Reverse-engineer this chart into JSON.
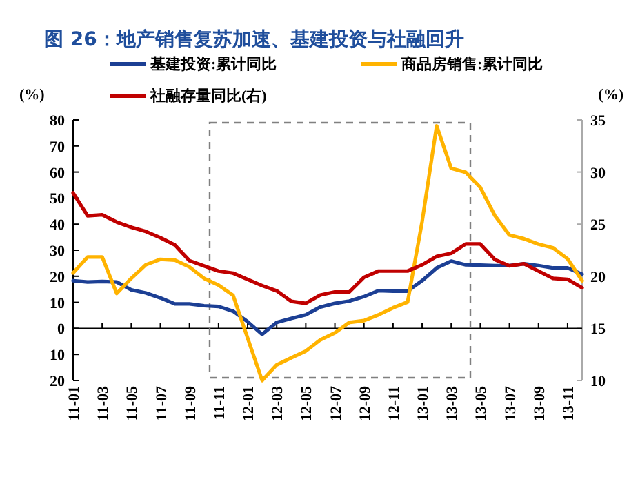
{
  "chart_data": {
    "type": "line",
    "title": "图 26：地产销售复苏加速、基建投资与社融回升",
    "categories": [
      "11-01",
      null,
      "11-03",
      null,
      "11-05",
      null,
      "11-07",
      null,
      "11-09",
      null,
      "11-11",
      null,
      "12-01",
      null,
      "12-03",
      null,
      "12-05",
      null,
      "12-07",
      null,
      "12-09",
      null,
      "12-11",
      null,
      "13-01",
      null,
      "13-03",
      null,
      "13-05",
      null,
      "13-07",
      null,
      "13-09",
      null,
      "13-11",
      null
    ],
    "series": [
      {
        "name": "基建投资:累计同比",
        "color": "#1c3f94",
        "values": [
          18.3,
          17.8,
          18,
          17.8,
          14.8,
          13.6,
          11.7,
          9.4,
          9.4,
          8.7,
          8.4,
          6.6,
          2.6,
          -2.3,
          2.3,
          3.8,
          5.2,
          8.2,
          9.6,
          10.5,
          12.2,
          14.5,
          14.3,
          14.3,
          18.3,
          23.2,
          25.8,
          24.4,
          24.3,
          24.1,
          24.1,
          24.8,
          24.1,
          23.2,
          23.2,
          20.8
        ]
      },
      {
        "name": "商品房销售:累计同比",
        "color": "#ffb300",
        "values": [
          21.3,
          27.4,
          27.4,
          13.4,
          19.2,
          24.4,
          26.5,
          26.2,
          23.6,
          19.2,
          16.6,
          12.7,
          -3.7,
          -20,
          -14,
          -11.3,
          -8.7,
          -4.4,
          -1.7,
          2.3,
          3,
          5.2,
          7.9,
          10.1,
          41,
          77.7,
          61.4,
          59.9,
          54.1,
          43.3,
          35.8,
          34.4,
          32.3,
          30.9,
          26.7,
          18.3
        ]
      },
      {
        "name": "社融存量同比(右)",
        "color": "#c00000",
        "axis": "y2",
        "values": [
          28,
          25.8,
          25.9,
          25.2,
          24.7,
          24.3,
          23.7,
          23,
          21.5,
          21,
          20.5,
          20.3,
          19.7,
          19.1,
          18.6,
          17.6,
          17.4,
          18.2,
          18.5,
          18.5,
          19.9,
          20.5,
          20.5,
          20.5,
          21.1,
          21.9,
          22.2,
          23.1,
          23.1,
          21.6,
          21,
          21.2,
          20.5,
          19.8,
          19.7,
          18.9
        ]
      }
    ],
    "ylabel": "(%)",
    "y2label": "(%)",
    "ylim": [
      -20,
      80
    ],
    "yticks": [
      {
        "value": -20,
        "label": "20"
      },
      {
        "value": -10,
        "label": "10"
      },
      0,
      10,
      20,
      30,
      40,
      50,
      60,
      70,
      80
    ],
    "y2lim": [
      10,
      35
    ],
    "y2ticks": [
      10,
      15,
      20,
      25,
      30,
      35
    ],
    "legend": "top",
    "marker": "none",
    "line_style": "solid"
  }
}
